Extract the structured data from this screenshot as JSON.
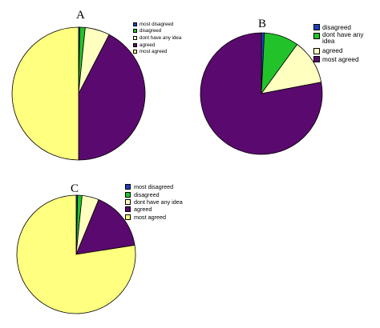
{
  "chart_data": [
    {
      "type": "pie",
      "title": "A",
      "legend_position": "top-right",
      "categories": [
        "most disagreed",
        "disagreed",
        "dont have any idea",
        "agreed",
        "most agreed"
      ],
      "values": [
        0.3,
        1.3,
        6.0,
        42.4,
        50.0
      ],
      "colors": [
        "#1f3fbf",
        "#22c32a",
        "#ffffc0",
        "#5a0a6e",
        "#ffff80"
      ]
    },
    {
      "type": "pie",
      "title": "B",
      "legend_position": "top-right",
      "categories": [
        "disagreed",
        "dont have any idea",
        "agreed",
        "most agreed"
      ],
      "values": [
        0.8,
        9.2,
        12.0,
        78.0
      ],
      "colors": [
        "#1f3fbf",
        "#22c32a",
        "#ffffc0",
        "#5a0a6e"
      ]
    },
    {
      "type": "pie",
      "title": "C",
      "legend_position": "top-right",
      "categories": [
        "most disagreed",
        "disagreed",
        "dont have any idea",
        "agreed",
        "most agreed"
      ],
      "values": [
        0.4,
        1.2,
        4.6,
        16.3,
        77.5
      ],
      "colors": [
        "#1f3fbf",
        "#22c32a",
        "#ffffc0",
        "#5a0a6e",
        "#ffff80"
      ]
    }
  ]
}
